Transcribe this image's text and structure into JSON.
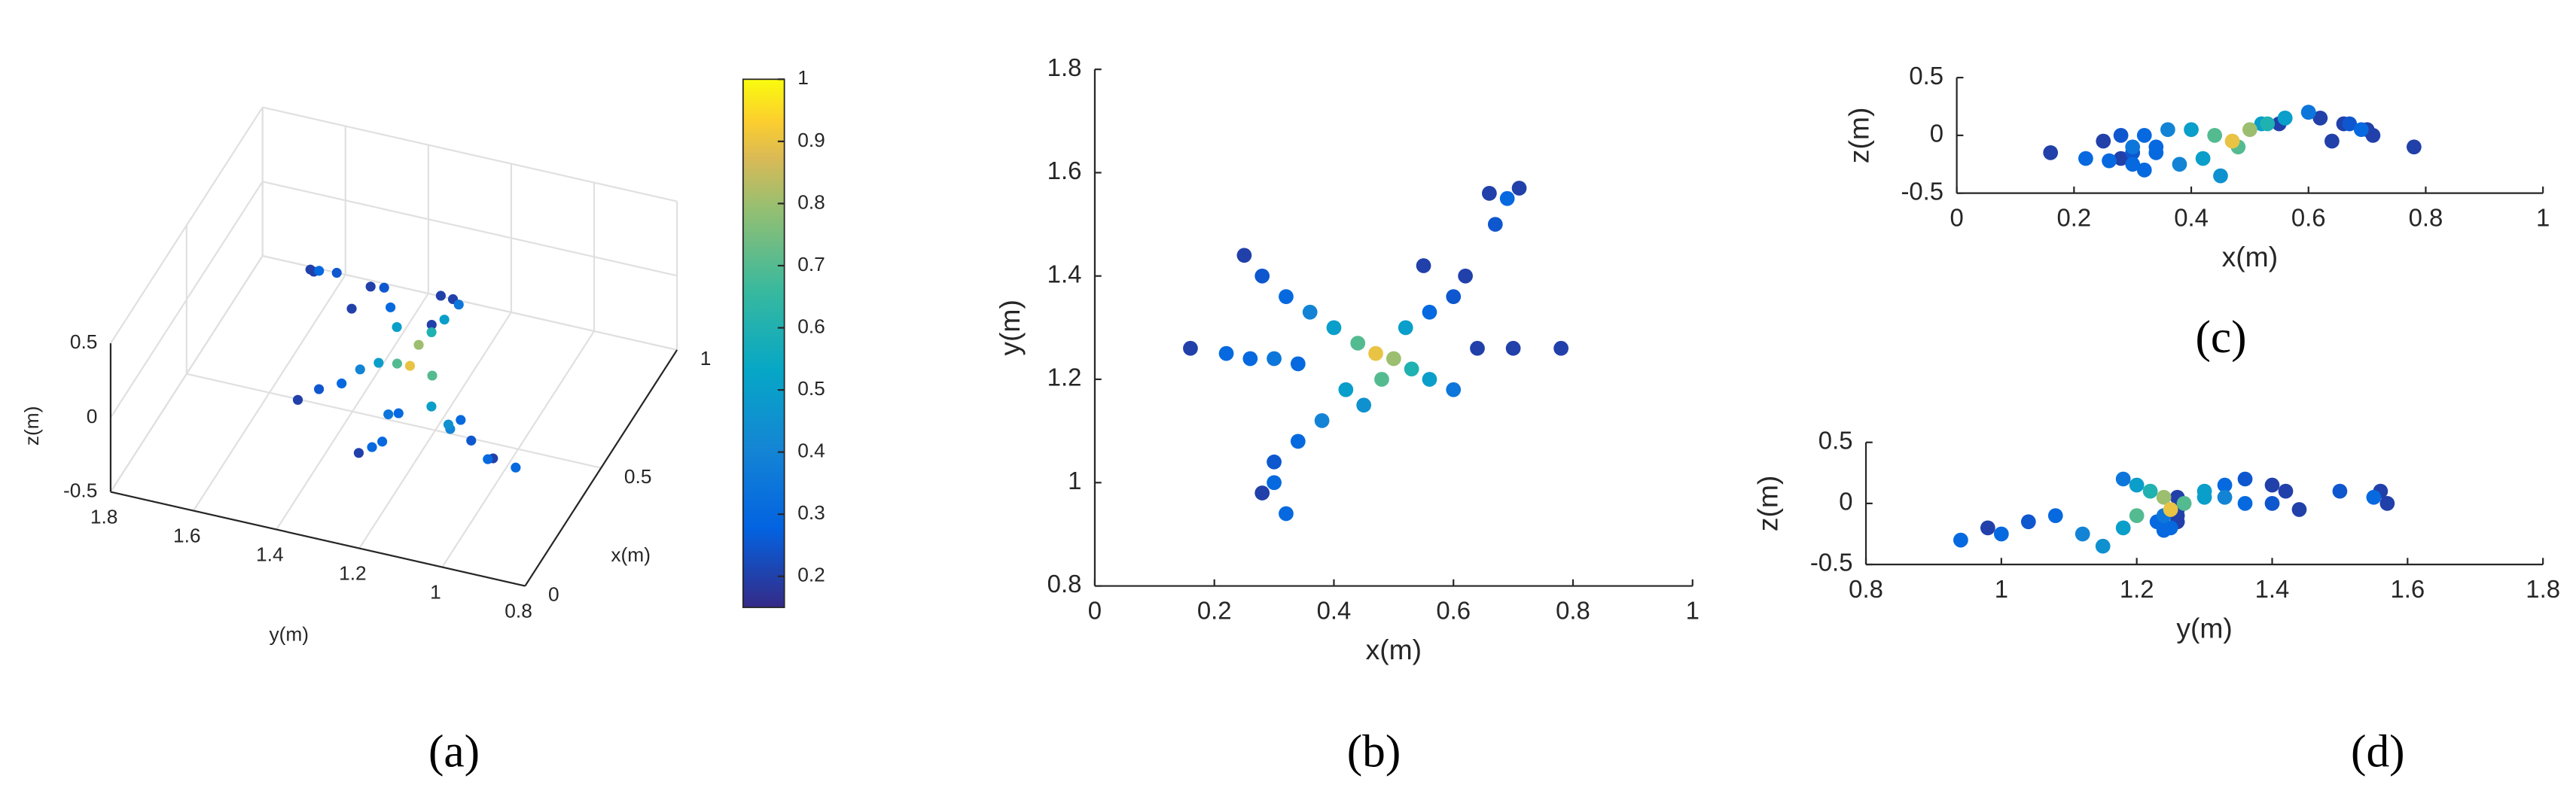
{
  "chart_data": [
    {
      "type": "scatter3d",
      "panel_label": "(a)",
      "xlabel": "x(m)",
      "ylabel": "y(m)",
      "zlabel": "z(m)",
      "xlim": [
        0,
        1
      ],
      "ylim": [
        0.8,
        1.8
      ],
      "zlim": [
        -0.5,
        0.5
      ],
      "xticks": [
        0,
        0.5,
        1
      ],
      "yticks": [
        0.8,
        1,
        1.2,
        1.4,
        1.6,
        1.8
      ],
      "zticks": [
        -0.5,
        0,
        0.5
      ],
      "colorbar": {
        "clim": [
          0.15,
          1
        ],
        "ticks": [
          0.2,
          0.3,
          0.4,
          0.5,
          0.6,
          0.7,
          0.8,
          0.9,
          1
        ]
      },
      "x": [
        0.16,
        0.22,
        0.26,
        0.3,
        0.34,
        0.25,
        0.28,
        0.32,
        0.36,
        0.4,
        0.44,
        0.47,
        0.5,
        0.53,
        0.56,
        0.6,
        0.52,
        0.56,
        0.6,
        0.55,
        0.62,
        0.64,
        0.7,
        0.78,
        0.66,
        0.69,
        0.71,
        0.67,
        0.42,
        0.38,
        0.34,
        0.3,
        0.28,
        0.32,
        0.3,
        0.45,
        0.48
      ],
      "y": [
        1.26,
        1.25,
        1.24,
        1.24,
        1.23,
        1.44,
        1.4,
        1.36,
        1.33,
        1.3,
        1.27,
        1.25,
        1.24,
        1.22,
        1.2,
        1.18,
        1.3,
        1.33,
        1.36,
        1.42,
        1.4,
        1.26,
        1.26,
        1.26,
        1.56,
        1.55,
        1.57,
        1.5,
        1.18,
        1.12,
        1.08,
        1.04,
        0.98,
        0.94,
        1.0,
        1.15,
        1.2
      ],
      "z": [
        -0.15,
        -0.2,
        -0.22,
        -0.1,
        -0.15,
        -0.05,
        0.0,
        0.0,
        0.05,
        0.05,
        0.0,
        -0.05,
        0.05,
        0.1,
        0.15,
        0.2,
        0.1,
        0.15,
        0.2,
        0.1,
        0.15,
        -0.05,
        0.05,
        -0.1,
        0.1,
        0.05,
        0.0,
        0.1,
        -0.2,
        -0.25,
        -0.1,
        -0.15,
        -0.2,
        -0.3,
        -0.25,
        -0.35,
        -0.1
      ],
      "color_values": [
        0.2,
        0.3,
        0.3,
        0.35,
        0.3,
        0.2,
        0.25,
        0.3,
        0.4,
        0.5,
        0.7,
        0.9,
        0.8,
        0.6,
        0.5,
        0.35,
        0.5,
        0.3,
        0.25,
        0.2,
        0.2,
        0.2,
        0.2,
        0.2,
        0.2,
        0.3,
        0.2,
        0.25,
        0.5,
        0.4,
        0.3,
        0.25,
        0.2,
        0.3,
        0.3,
        0.45,
        0.7
      ]
    },
    {
      "type": "scatter",
      "panel_label": "(b)",
      "xlabel": "x(m)",
      "ylabel": "y(m)",
      "xlim": [
        0,
        1
      ],
      "ylim": [
        0.8,
        1.8
      ],
      "xticks": [
        0,
        0.2,
        0.4,
        0.6,
        0.8,
        1
      ],
      "yticks": [
        0.8,
        1,
        1.2,
        1.4,
        1.6,
        1.8
      ],
      "x": [
        0.16,
        0.22,
        0.26,
        0.3,
        0.34,
        0.25,
        0.28,
        0.32,
        0.36,
        0.4,
        0.44,
        0.47,
        0.5,
        0.53,
        0.56,
        0.6,
        0.52,
        0.56,
        0.6,
        0.55,
        0.62,
        0.64,
        0.7,
        0.78,
        0.66,
        0.69,
        0.71,
        0.67,
        0.42,
        0.38,
        0.34,
        0.3,
        0.28,
        0.32,
        0.3,
        0.45,
        0.48
      ],
      "y": [
        1.26,
        1.25,
        1.24,
        1.24,
        1.23,
        1.44,
        1.4,
        1.36,
        1.33,
        1.3,
        1.27,
        1.25,
        1.24,
        1.22,
        1.2,
        1.18,
        1.3,
        1.33,
        1.36,
        1.42,
        1.4,
        1.26,
        1.26,
        1.26,
        1.56,
        1.55,
        1.57,
        1.5,
        1.18,
        1.12,
        1.08,
        1.04,
        0.98,
        0.94,
        1.0,
        1.15,
        1.2
      ],
      "color_values": [
        0.2,
        0.3,
        0.3,
        0.35,
        0.3,
        0.2,
        0.25,
        0.3,
        0.4,
        0.5,
        0.7,
        0.9,
        0.8,
        0.6,
        0.5,
        0.35,
        0.5,
        0.3,
        0.25,
        0.2,
        0.2,
        0.2,
        0.2,
        0.2,
        0.2,
        0.3,
        0.2,
        0.25,
        0.5,
        0.4,
        0.3,
        0.25,
        0.2,
        0.3,
        0.3,
        0.45,
        0.7
      ]
    },
    {
      "type": "scatter",
      "panel_label": "(c)",
      "xlabel": "x(m)",
      "ylabel": "z(m)",
      "xlim": [
        0,
        1
      ],
      "ylim": [
        -0.5,
        0.5
      ],
      "xticks": [
        0,
        0.2,
        0.4,
        0.6,
        0.8,
        1
      ],
      "yticks": [
        -0.5,
        0,
        0.5
      ],
      "x": [
        0.16,
        0.22,
        0.26,
        0.3,
        0.34,
        0.25,
        0.28,
        0.32,
        0.36,
        0.4,
        0.44,
        0.47,
        0.5,
        0.53,
        0.56,
        0.6,
        0.52,
        0.56,
        0.6,
        0.55,
        0.62,
        0.64,
        0.7,
        0.78,
        0.66,
        0.69,
        0.71,
        0.67,
        0.42,
        0.38,
        0.34,
        0.3,
        0.28,
        0.32,
        0.3,
        0.45,
        0.48
      ],
      "y": [
        -0.15,
        -0.2,
        -0.22,
        -0.1,
        -0.15,
        -0.05,
        0.0,
        0.0,
        0.05,
        0.05,
        0.0,
        -0.05,
        0.05,
        0.1,
        0.15,
        0.2,
        0.1,
        0.15,
        0.2,
        0.1,
        0.15,
        -0.05,
        0.05,
        -0.1,
        0.1,
        0.05,
        0.0,
        0.1,
        -0.2,
        -0.25,
        -0.1,
        -0.15,
        -0.2,
        -0.3,
        -0.25,
        -0.35,
        -0.1
      ],
      "color_values": [
        0.2,
        0.3,
        0.3,
        0.35,
        0.3,
        0.2,
        0.25,
        0.3,
        0.4,
        0.5,
        0.7,
        0.9,
        0.8,
        0.6,
        0.5,
        0.35,
        0.5,
        0.3,
        0.25,
        0.2,
        0.2,
        0.2,
        0.2,
        0.2,
        0.2,
        0.3,
        0.2,
        0.25,
        0.5,
        0.4,
        0.3,
        0.25,
        0.2,
        0.3,
        0.3,
        0.45,
        0.7
      ]
    },
    {
      "type": "scatter",
      "panel_label": "(d)",
      "xlabel": "y(m)",
      "ylabel": "z(m)",
      "xlim": [
        0.8,
        1.8
      ],
      "ylim": [
        -0.5,
        0.5
      ],
      "xticks": [
        0.8,
        1,
        1.2,
        1.4,
        1.6,
        1.8
      ],
      "yticks": [
        -0.5,
        0,
        0.5
      ],
      "x": [
        1.26,
        1.25,
        1.24,
        1.24,
        1.23,
        1.44,
        1.4,
        1.36,
        1.33,
        1.3,
        1.27,
        1.25,
        1.24,
        1.22,
        1.2,
        1.18,
        1.3,
        1.33,
        1.36,
        1.42,
        1.4,
        1.26,
        1.26,
        1.26,
        1.56,
        1.55,
        1.57,
        1.5,
        1.18,
        1.12,
        1.08,
        1.04,
        0.98,
        0.94,
        1.0,
        1.15,
        1.2
      ],
      "y": [
        -0.15,
        -0.2,
        -0.22,
        -0.1,
        -0.15,
        -0.05,
        0.0,
        0.0,
        0.05,
        0.05,
        0.0,
        -0.05,
        0.05,
        0.1,
        0.15,
        0.2,
        0.1,
        0.15,
        0.2,
        0.1,
        0.15,
        -0.05,
        0.05,
        -0.1,
        0.1,
        0.05,
        0.0,
        0.1,
        -0.2,
        -0.25,
        -0.1,
        -0.15,
        -0.2,
        -0.3,
        -0.25,
        -0.35,
        -0.1
      ],
      "color_values": [
        0.2,
        0.3,
        0.3,
        0.35,
        0.3,
        0.2,
        0.25,
        0.3,
        0.4,
        0.5,
        0.7,
        0.9,
        0.8,
        0.6,
        0.5,
        0.35,
        0.5,
        0.3,
        0.25,
        0.2,
        0.2,
        0.2,
        0.2,
        0.2,
        0.2,
        0.3,
        0.2,
        0.25,
        0.5,
        0.4,
        0.3,
        0.25,
        0.2,
        0.3,
        0.3,
        0.45,
        0.7
      ]
    }
  ]
}
